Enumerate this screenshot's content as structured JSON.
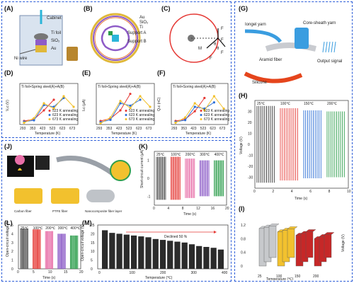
{
  "panels": {
    "A": {
      "tag": "(A)",
      "labels": [
        "Cabinet",
        "Ti foil",
        "SiO₂",
        "Au",
        "Ni wire"
      ]
    },
    "B": {
      "tag": "(B)",
      "labels": [
        "Au",
        "SiO₂",
        "Ti",
        "Support A",
        "Support B"
      ]
    },
    "C": {
      "tag": "(C)",
      "labels": [
        "F",
        "F",
        "M",
        "F",
        "F",
        "θ",
        "θ"
      ]
    },
    "D": {
      "tag": "(D)",
      "title": "Ti foil+Spring steel(A)+A(B)",
      "ylabel": "Vₒc (V)",
      "xlabel": "Temperature (K)"
    },
    "E": {
      "tag": "(E)",
      "title": "Ti foil+Spring steel(A)+A(B)",
      "ylabel": "Iₛc (μA)",
      "xlabel": "Temperature (K)"
    },
    "F": {
      "tag": "(F)",
      "title": "Ti foil+Soring steel(A)+A(B)",
      "ylabel": "Qₛc (nC)",
      "xlabel": "Temperature (K)"
    },
    "G": {
      "tag": "(G)",
      "labels": [
        "Iongel yarn",
        "Core-sheath yarn",
        "Aramid fiber",
        "Output signal",
        "Silicone"
      ]
    },
    "H": {
      "tag": "(H)",
      "ylabel": "Voltage (V)",
      "xlabel": "Time (s)",
      "legend": [
        "25℃",
        "100℃",
        "150℃",
        "200℃"
      ]
    },
    "I": {
      "tag": "(I)",
      "ylabel": "Voltage (V)",
      "xlabel": "Temperature (℃)",
      "zlabel": "Time (s)"
    },
    "J": {
      "tag": "(J)",
      "labels": [
        "Carbon fiber",
        "PTFE fiber",
        "Nanocomposite fiber layer"
      ]
    },
    "K": {
      "tag": "(K)",
      "ylabel": "Short-circuit current (μA)",
      "xlabel": "Time (s)",
      "temps": [
        "25℃",
        "100℃",
        "200℃",
        "300℃",
        "400℃"
      ]
    },
    "L": {
      "tag": "(L)",
      "ylabel": "Open-circuit voltage (V)",
      "xlabel": "Time (s)",
      "temps": [
        "25℃",
        "100℃",
        "200℃",
        "300℃",
        "400℃"
      ]
    },
    "M": {
      "tag": "(M)",
      "ylabel": "Open-circuit voltage (V)",
      "xlabel": "Temperature (℃)",
      "annotation": "Declined 50 %"
    }
  },
  "legend_def": [
    "523 K annealing",
    "623 K annealing",
    "673 K annealing"
  ],
  "colors": {
    "red": "#e53935",
    "blue": "#2c6fd6",
    "yellow": "#f2c12e",
    "gray": "#555555",
    "green": "#2e9e4d",
    "pink": "#e86fa8",
    "purple": "#8c5cc7",
    "dash": "#2a5bd7"
  },
  "chart_data": [
    {
      "type": "line",
      "panel": "D",
      "title": "Ti foil+Spring steel(A)+A(B)",
      "xlabel": "Temperature (K)",
      "ylabel": "Vₒc (V)",
      "categories": [
        "293",
        "353",
        "423",
        "523",
        "623",
        "673"
      ],
      "ylim": [
        0,
        100
      ],
      "series": [
        {
          "name": "523 K annealing",
          "values": [
            10,
            15,
            40,
            70,
            null,
            null
          ]
        },
        {
          "name": "623 K annealing",
          "values": [
            8,
            12,
            55,
            50,
            75,
            null
          ]
        },
        {
          "name": "673 K annealing",
          "values": [
            5,
            18,
            60,
            45,
            80,
            50
          ]
        }
      ]
    },
    {
      "type": "line",
      "panel": "E",
      "title": "Ti foil+Spring steel(A)+A(B)",
      "xlabel": "Temperature (K)",
      "ylabel": "Iₛc (μA)",
      "categories": [
        "293",
        "353",
        "423",
        "523",
        "623",
        "673"
      ],
      "ylim": [
        0,
        3
      ],
      "series": [
        {
          "name": "523 K annealing",
          "values": [
            0.3,
            0.5,
            1.2,
            2.6,
            null,
            null
          ]
        },
        {
          "name": "623 K annealing",
          "values": [
            0.2,
            0.4,
            1.8,
            1.6,
            2.1,
            null
          ]
        },
        {
          "name": "673 K annealing",
          "values": [
            0.1,
            0.6,
            2.0,
            1.4,
            2.4,
            1.5
          ]
        }
      ]
    },
    {
      "type": "line",
      "panel": "F",
      "title": "Ti foil+Soring steel(A)+A(B)",
      "xlabel": "Temperature (K)",
      "ylabel": "Qₛc (nC)",
      "categories": [
        "293",
        "353",
        "423",
        "523",
        "623",
        "673"
      ],
      "ylim": [
        0,
        40
      ],
      "series": [
        {
          "name": "523 K annealing",
          "values": [
            4,
            6,
            15,
            30,
            null,
            null
          ]
        },
        {
          "name": "623 K annealing",
          "values": [
            3,
            5,
            20,
            18,
            25,
            null
          ]
        },
        {
          "name": "673 K annealing",
          "values": [
            2,
            8,
            24,
            16,
            32,
            18
          ]
        }
      ]
    },
    {
      "type": "line",
      "panel": "H",
      "xlabel": "Time (s)",
      "ylabel": "Voltage (V)",
      "xlim": [
        0,
        10
      ],
      "ylim": [
        -40,
        40
      ],
      "series": [
        {
          "name": "25℃",
          "values": [
            35,
            -35
          ]
        },
        {
          "name": "100℃",
          "values": [
            33,
            -33
          ]
        },
        {
          "name": "150℃",
          "values": [
            31,
            -31
          ]
        },
        {
          "name": "200℃",
          "values": [
            30,
            -30
          ]
        }
      ]
    },
    {
      "type": "bar",
      "panel": "I",
      "xlabel": "Temperature (℃)",
      "ylabel": "Voltage (V)",
      "categories": [
        "25",
        "100",
        "150",
        "200"
      ],
      "ylim": [
        0,
        1.2
      ],
      "series": [
        {
          "name": "",
          "values": [
            1.1,
            1.0,
            0.9,
            0.8
          ]
        }
      ]
    },
    {
      "type": "line",
      "panel": "K",
      "xlabel": "Time (s)",
      "ylabel": "Short-circuit current (μA)",
      "xlim": [
        0,
        20
      ],
      "ylim": [
        -1.5,
        1.5
      ],
      "series": [
        {
          "name": "25℃",
          "values": [
            1.2,
            -1.2
          ]
        },
        {
          "name": "100℃",
          "values": [
            1.2,
            -1.2
          ]
        },
        {
          "name": "200℃",
          "values": [
            1.1,
            -1.1
          ]
        },
        {
          "name": "300℃",
          "values": [
            1.0,
            -1.0
          ]
        },
        {
          "name": "400℃",
          "values": [
            1.0,
            -1.0
          ]
        }
      ]
    },
    {
      "type": "line",
      "panel": "L",
      "xlabel": "Time (s)",
      "ylabel": "Open-circuit voltage (V)",
      "xlim": [
        0,
        20
      ],
      "ylim": [
        0,
        5
      ],
      "series": [
        {
          "name": "25℃",
          "values": [
            4.6,
            0
          ]
        },
        {
          "name": "100℃",
          "values": [
            4.5,
            0
          ]
        },
        {
          "name": "200℃",
          "values": [
            4.3,
            0
          ]
        },
        {
          "name": "300℃",
          "values": [
            4.0,
            0
          ]
        },
        {
          "name": "400℃",
          "values": [
            3.8,
            0
          ]
        }
      ]
    },
    {
      "type": "bar",
      "panel": "M",
      "xlabel": "Temperature (℃)",
      "ylabel": "Open-circuit voltage (V)",
      "ylim": [
        0,
        25
      ],
      "categories": [
        "0",
        "100",
        "120",
        "140",
        "160",
        "180",
        "200",
        "220",
        "240",
        "260",
        "280",
        "300",
        "320",
        "340",
        "360",
        "380",
        "400"
      ],
      "values": [
        22,
        20.5,
        20,
        19.5,
        19,
        18.5,
        18,
        17,
        16.5,
        16,
        15.5,
        15,
        14,
        13,
        12.5,
        12,
        11
      ]
    }
  ]
}
